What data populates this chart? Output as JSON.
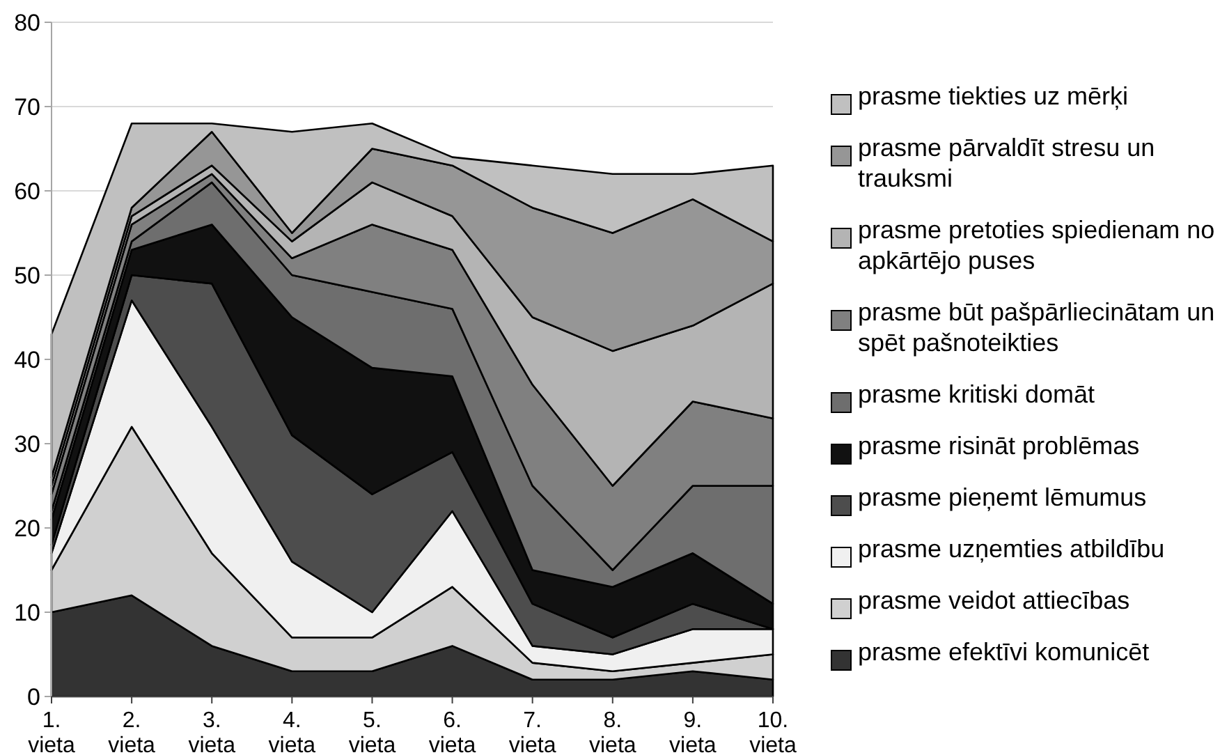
{
  "chart_data": {
    "type": "area",
    "stacked": true,
    "categories": [
      "1. vieta",
      "2. vieta",
      "3. vieta",
      "4. vieta",
      "5. vieta",
      "6. vieta",
      "7. vieta",
      "8. vieta",
      "9. vieta",
      "10. vieta"
    ],
    "ylim": [
      0,
      80
    ],
    "yticks": [
      0,
      10,
      20,
      30,
      40,
      50,
      60,
      70,
      80
    ],
    "grid": "y",
    "legend": "right",
    "series": [
      {
        "name": "prasme efektīvi komunicēt",
        "color": "#333333",
        "values": [
          10,
          12,
          6,
          3,
          3,
          6,
          2,
          2,
          3,
          2
        ]
      },
      {
        "name": "prasme veidot attiecības",
        "color": "#d0d0d0",
        "values": [
          5,
          20,
          11,
          4,
          4,
          7,
          2,
          1,
          1,
          3
        ]
      },
      {
        "name": "prasme uzņemties atbildību",
        "color": "#f0f0f0",
        "values": [
          2,
          15,
          15,
          9,
          3,
          9,
          2,
          2,
          4,
          3
        ]
      },
      {
        "name": "prasme pieņemt lēmumus",
        "color": "#4d4d4d",
        "values": [
          1,
          3,
          17,
          15,
          14,
          7,
          5,
          2,
          3,
          0
        ]
      },
      {
        "name": "prasme risināt problēmas",
        "color": "#111111",
        "values": [
          3,
          3,
          7,
          14,
          15,
          9,
          4,
          6,
          6,
          3
        ]
      },
      {
        "name": "prasme kritiski domāt",
        "color": "#6e6e6e",
        "values": [
          1,
          1,
          5,
          5,
          9,
          8,
          10,
          2,
          8,
          14
        ]
      },
      {
        "name": "prasme būt pašpārliecinātam un spēt pašnoteikties",
        "color": "#808080",
        "values": [
          2,
          2,
          1,
          2,
          8,
          7,
          12,
          10,
          10,
          8
        ]
      },
      {
        "name": "prasme pretoties spiedienam no apkārtējo puses",
        "color": "#b4b4b4",
        "values": [
          1,
          1,
          1,
          2,
          5,
          4,
          8,
          16,
          9,
          16
        ]
      },
      {
        "name": "prasme pārvaldīt stresu un trauksmi",
        "color": "#969696",
        "values": [
          1,
          1,
          4,
          1,
          4,
          6,
          13,
          14,
          15,
          5
        ]
      },
      {
        "name": "prasme tiekties uz mērķi",
        "color": "#c0c0c0",
        "values": [
          17,
          10,
          1,
          12,
          3,
          1,
          5,
          7,
          3,
          9
        ]
      }
    ]
  }
}
